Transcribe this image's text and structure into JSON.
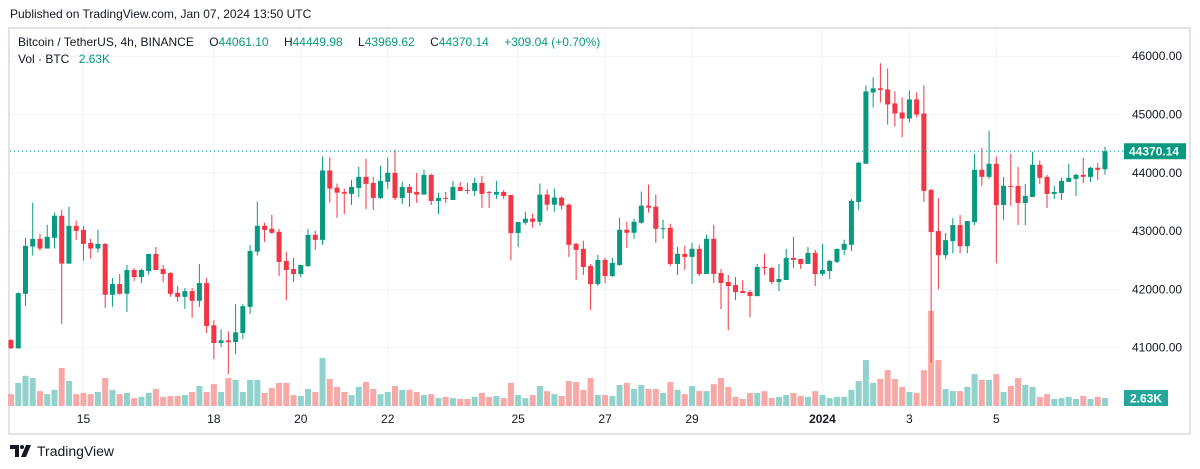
{
  "header": {
    "published": "Published on TradingView.com, Jan 07, 2024 13:50 UTC"
  },
  "legend": {
    "symbol": "Bitcoin / TetherUS, 4h, BINANCE",
    "open_label": "O",
    "open": "44061.10",
    "high_label": "H",
    "high": "44449.98",
    "low_label": "L",
    "low": "43969.62",
    "close_label": "C",
    "close": "44370.14",
    "change": "+309.04 (+0.70%)"
  },
  "volume_legend": {
    "label": "Vol · BTC",
    "value": "2.63K"
  },
  "footer": {
    "brand": "TradingView",
    "logo_icon": "tradingview-logo-icon"
  },
  "colors": {
    "up": "#089981",
    "down": "#f23645",
    "volume_up": "#92d2cc",
    "volume_down": "#f7a9a7",
    "grid": "#f0f3fa",
    "frame": "#e0e3eb"
  },
  "chart_data": {
    "type": "candlestick",
    "symbol": "Bitcoin / TetherUS",
    "interval": "4h",
    "ylim": [
      40000,
      46450
    ],
    "grid": true,
    "y_ticks": [
      "41000.00",
      "42000.00",
      "43000.00",
      "44000.00",
      "45000.00",
      "46000.00"
    ],
    "x_ticks": [
      "15",
      "18",
      "20",
      "22",
      "25",
      "27",
      "29",
      "2024",
      "3",
      "5"
    ],
    "last_price_label": "44370.14",
    "last_volume_label": "2.63K",
    "candles_ohlc": [
      [
        41130,
        41150,
        40980,
        40990
      ],
      [
        40988,
        41948,
        40988,
        41936
      ],
      [
        41925,
        42885,
        41718,
        42747
      ],
      [
        42735,
        43488,
        42580,
        42867
      ],
      [
        42867,
        42954,
        42666,
        42701
      ],
      [
        42701,
        43109,
        42701,
        42902
      ],
      [
        42885,
        43316,
        42701,
        43264
      ],
      [
        43264,
        43367,
        41408,
        42442
      ],
      [
        42442,
        43419,
        42442,
        43091
      ],
      [
        43091,
        43178,
        42850,
        43005
      ],
      [
        43022,
        43091,
        42494,
        42781
      ],
      [
        42798,
        42867,
        42528,
        42701
      ],
      [
        42701,
        43022,
        42632,
        42781
      ],
      [
        42781,
        42798,
        41683,
        41908
      ],
      [
        41908,
        42195,
        41701,
        42092
      ],
      [
        42092,
        42264,
        41908,
        41925
      ],
      [
        41925,
        42419,
        41614,
        42333
      ],
      [
        42333,
        42367,
        42143,
        42212
      ],
      [
        42212,
        42350,
        42109,
        42333
      ],
      [
        42316,
        42609,
        42247,
        42609
      ],
      [
        42609,
        42729,
        42333,
        42333
      ],
      [
        42350,
        42419,
        42126,
        42264
      ],
      [
        42281,
        42298,
        41873,
        41925
      ],
      [
        41942,
        42057,
        41787,
        41873
      ],
      [
        41873,
        42023,
        41666,
        41971
      ],
      [
        41971,
        42023,
        41511,
        41804
      ],
      [
        41804,
        42436,
        41701,
        42109
      ],
      [
        42109,
        42195,
        41252,
        41373
      ],
      [
        41385,
        41471,
        40804,
        41080
      ],
      [
        41080,
        41316,
        41011,
        41126
      ],
      [
        41126,
        41281,
        40546,
        41097
      ],
      [
        41097,
        41747,
        40890,
        41264
      ],
      [
        41252,
        41747,
        41149,
        41712
      ],
      [
        41701,
        42764,
        41580,
        42660
      ],
      [
        42649,
        43505,
        42580,
        43091
      ],
      [
        43091,
        43143,
        42816,
        43022
      ],
      [
        43040,
        43281,
        42954,
        42971
      ],
      [
        42988,
        43040,
        42229,
        42471
      ],
      [
        42488,
        42643,
        41816,
        42333
      ],
      [
        42350,
        42540,
        42126,
        42264
      ],
      [
        42264,
        42419,
        42212,
        42419
      ],
      [
        42402,
        43040,
        42385,
        42936
      ],
      [
        42936,
        43005,
        42678,
        42850
      ],
      [
        42850,
        44281,
        42764,
        44040
      ],
      [
        44040,
        44264,
        43488,
        43729
      ],
      [
        43747,
        43816,
        43229,
        43660
      ],
      [
        43672,
        43729,
        43293,
        43643
      ],
      [
        43638,
        43879,
        43448,
        43758
      ],
      [
        43741,
        44103,
        43586,
        43931
      ],
      [
        43931,
        44241,
        43379,
        43810
      ],
      [
        43827,
        43931,
        43362,
        43569
      ],
      [
        43569,
        44121,
        43552,
        43862
      ],
      [
        43845,
        44258,
        43724,
        44000
      ],
      [
        44000,
        44396,
        43534,
        43569
      ],
      [
        43569,
        43845,
        43465,
        43758
      ],
      [
        43758,
        43810,
        43414,
        43655
      ],
      [
        43672,
        44000,
        43483,
        43626
      ],
      [
        43626,
        44052,
        43626,
        43965
      ],
      [
        43965,
        43983,
        43448,
        43517
      ],
      [
        43517,
        43655,
        43293,
        43569
      ],
      [
        43569,
        43672,
        43483,
        43552
      ],
      [
        43534,
        43862,
        43534,
        43758
      ],
      [
        43758,
        43845,
        43689,
        43689
      ],
      [
        43707,
        43827,
        43638,
        43695
      ],
      [
        43689,
        43914,
        43603,
        43827
      ],
      [
        43827,
        43948,
        43396,
        43638
      ],
      [
        43672,
        43689,
        43396,
        43661
      ],
      [
        43626,
        43862,
        43552,
        43672
      ],
      [
        43672,
        43707,
        43552,
        43603
      ],
      [
        43620,
        43620,
        42500,
        42966
      ],
      [
        42966,
        43155,
        42724,
        43155
      ],
      [
        43144,
        43334,
        43110,
        43213
      ],
      [
        43213,
        43299,
        43058,
        43161
      ],
      [
        43161,
        43816,
        43092,
        43627
      ],
      [
        43627,
        43713,
        43351,
        43454
      ],
      [
        43454,
        43730,
        43334,
        43575
      ],
      [
        43575,
        43592,
        43368,
        43437
      ],
      [
        43454,
        43472,
        42558,
        42765
      ],
      [
        42782,
        42799,
        42161,
        42679
      ],
      [
        42696,
        42834,
        42247,
        42385
      ],
      [
        42402,
        42437,
        41643,
        42091
      ],
      [
        42091,
        42592,
        42058,
        42506
      ],
      [
        42506,
        42541,
        42109,
        42230
      ],
      [
        42230,
        42541,
        42213,
        42454
      ],
      [
        42420,
        43230,
        42403,
        43023
      ],
      [
        43023,
        43161,
        42713,
        42972
      ],
      [
        42972,
        43213,
        42868,
        43161
      ],
      [
        43144,
        43679,
        43127,
        43437
      ],
      [
        43437,
        43799,
        43316,
        43403
      ],
      [
        43420,
        43627,
        42799,
        43040
      ],
      [
        43040,
        43195,
        42868,
        43050
      ],
      [
        43058,
        43127,
        42403,
        42437
      ],
      [
        42437,
        42730,
        42247,
        42610
      ],
      [
        42610,
        42747,
        42334,
        42558
      ],
      [
        42558,
        42799,
        42092,
        42696
      ],
      [
        42696,
        42765,
        42230,
        42265
      ],
      [
        42265,
        42937,
        42265,
        42868
      ],
      [
        42868,
        43110,
        42110,
        42265
      ],
      [
        42282,
        42351,
        41661,
        42110
      ],
      [
        42127,
        42247,
        41299,
        42058
      ],
      [
        42075,
        42213,
        41816,
        41954
      ],
      [
        41972,
        42161,
        41937,
        41937
      ],
      [
        41954,
        41989,
        41523,
        41885
      ],
      [
        41885,
        42437,
        41885,
        42385
      ],
      [
        42385,
        42610,
        42248,
        42368
      ],
      [
        42368,
        42385,
        42092,
        42127
      ],
      [
        42127,
        42437,
        41972,
        42179
      ],
      [
        42161,
        42696,
        42161,
        42541
      ],
      [
        42541,
        42903,
        42368,
        42506
      ],
      [
        42523,
        42523,
        42351,
        42437
      ],
      [
        42437,
        42730,
        42437,
        42627
      ],
      [
        42627,
        42679,
        42058,
        42265
      ],
      [
        42265,
        42782,
        42230,
        42334
      ],
      [
        42316,
        42506,
        42179,
        42489
      ],
      [
        42472,
        42696,
        42454,
        42696
      ],
      [
        42679,
        42851,
        42592,
        42782
      ],
      [
        42765,
        43552,
        42656,
        43518
      ],
      [
        43500,
        44190,
        43362,
        44173
      ],
      [
        44156,
        45500,
        44156,
        45397
      ],
      [
        45379,
        45638,
        45121,
        45449
      ],
      [
        45449,
        45880,
        45207,
        45420
      ],
      [
        45431,
        45793,
        44828,
        45173
      ],
      [
        45190,
        45397,
        44793,
        45017
      ],
      [
        45035,
        45293,
        44604,
        44931
      ],
      [
        44931,
        45414,
        44862,
        45259
      ],
      [
        45259,
        45379,
        44949,
        45000
      ],
      [
        45017,
        45500,
        43500,
        43690
      ],
      [
        43707,
        43725,
        40742,
        42983
      ],
      [
        43000,
        43569,
        42000,
        42587
      ],
      [
        42586,
        42966,
        42517,
        42845
      ],
      [
        42827,
        43224,
        42621,
        43103
      ],
      [
        43103,
        43276,
        42621,
        42741
      ],
      [
        42741,
        43172,
        42621,
        43172
      ],
      [
        43155,
        44328,
        43104,
        44052
      ],
      [
        44052,
        44431,
        43776,
        43931
      ],
      [
        43931,
        44724,
        43896,
        44155
      ],
      [
        44155,
        44276,
        42448,
        43448
      ],
      [
        43448,
        43931,
        43190,
        43776
      ],
      [
        43776,
        44328,
        43431,
        43759
      ],
      [
        43776,
        44103,
        43104,
        43483
      ],
      [
        43483,
        43810,
        43104,
        43604
      ],
      [
        43586,
        44362,
        43586,
        44138
      ],
      [
        44138,
        44207,
        43810,
        43914
      ],
      [
        43931,
        43966,
        43397,
        43638
      ],
      [
        43638,
        43776,
        43552,
        43672
      ],
      [
        43655,
        43914,
        43535,
        43862
      ],
      [
        43845,
        44155,
        43845,
        43914
      ],
      [
        43896,
        43983,
        43604,
        43966
      ],
      [
        43966,
        44259,
        43828,
        43931
      ],
      [
        43931,
        44103,
        43845,
        44086
      ],
      [
        44086,
        44172,
        43879,
        44052
      ],
      [
        44061.1,
        44449.98,
        43969.62,
        44370.14
      ]
    ],
    "volume_k": [
      3.9,
      7.6,
      9.9,
      9.2,
      4.9,
      3.9,
      5.3,
      12.5,
      8.2,
      3.9,
      4.3,
      3.9,
      4.6,
      9.2,
      5.3,
      3.9,
      4.3,
      2.6,
      3.0,
      4.3,
      5.6,
      3.0,
      3.3,
      3.3,
      3.6,
      4.6,
      6.6,
      4.6,
      7.2,
      4.6,
      9.2,
      8.6,
      4.6,
      8.6,
      8.6,
      4.3,
      5.9,
      7.6,
      7.6,
      3.6,
      3.3,
      5.6,
      4.6,
      15.8,
      8.9,
      6.3,
      4.6,
      3.6,
      6.3,
      7.9,
      5.6,
      3.9,
      4.6,
      6.6,
      5.3,
      5.3,
      4.6,
      3.6,
      3.9,
      2.6,
      3.0,
      2.6,
      2.3,
      2.3,
      3.0,
      4.3,
      3.0,
      3.3,
      2.6,
      7.6,
      3.6,
      2.6,
      3.6,
      6.6,
      4.9,
      3.9,
      3.3,
      8.2,
      7.9,
      5.3,
      9.2,
      3.6,
      3.6,
      3.3,
      6.9,
      7.6,
      5.6,
      6.9,
      5.6,
      5.6,
      4.3,
      7.9,
      5.3,
      3.9,
      6.6,
      4.9,
      4.9,
      7.2,
      9.2,
      6.3,
      3.0,
      2.3,
      4.3,
      4.3,
      4.9,
      2.6,
      3.0,
      3.6,
      4.3,
      3.3,
      3.0,
      4.9,
      3.6,
      2.6,
      3.0,
      3.0,
      5.3,
      8.2,
      15.1,
      7.6,
      8.9,
      11.8,
      8.9,
      6.3,
      4.6,
      4.3,
      11.8,
      31.3,
      15.1,
      5.6,
      4.9,
      4.9,
      6.3,
      10.5,
      8.6,
      8.6,
      10.5,
      4.6,
      6.6,
      9.2,
      6.9,
      6.3,
      3.0,
      3.9,
      2.3,
      2.6,
      3.0,
      2.3,
      3.3,
      2.3,
      3.0,
      2.63
    ]
  }
}
